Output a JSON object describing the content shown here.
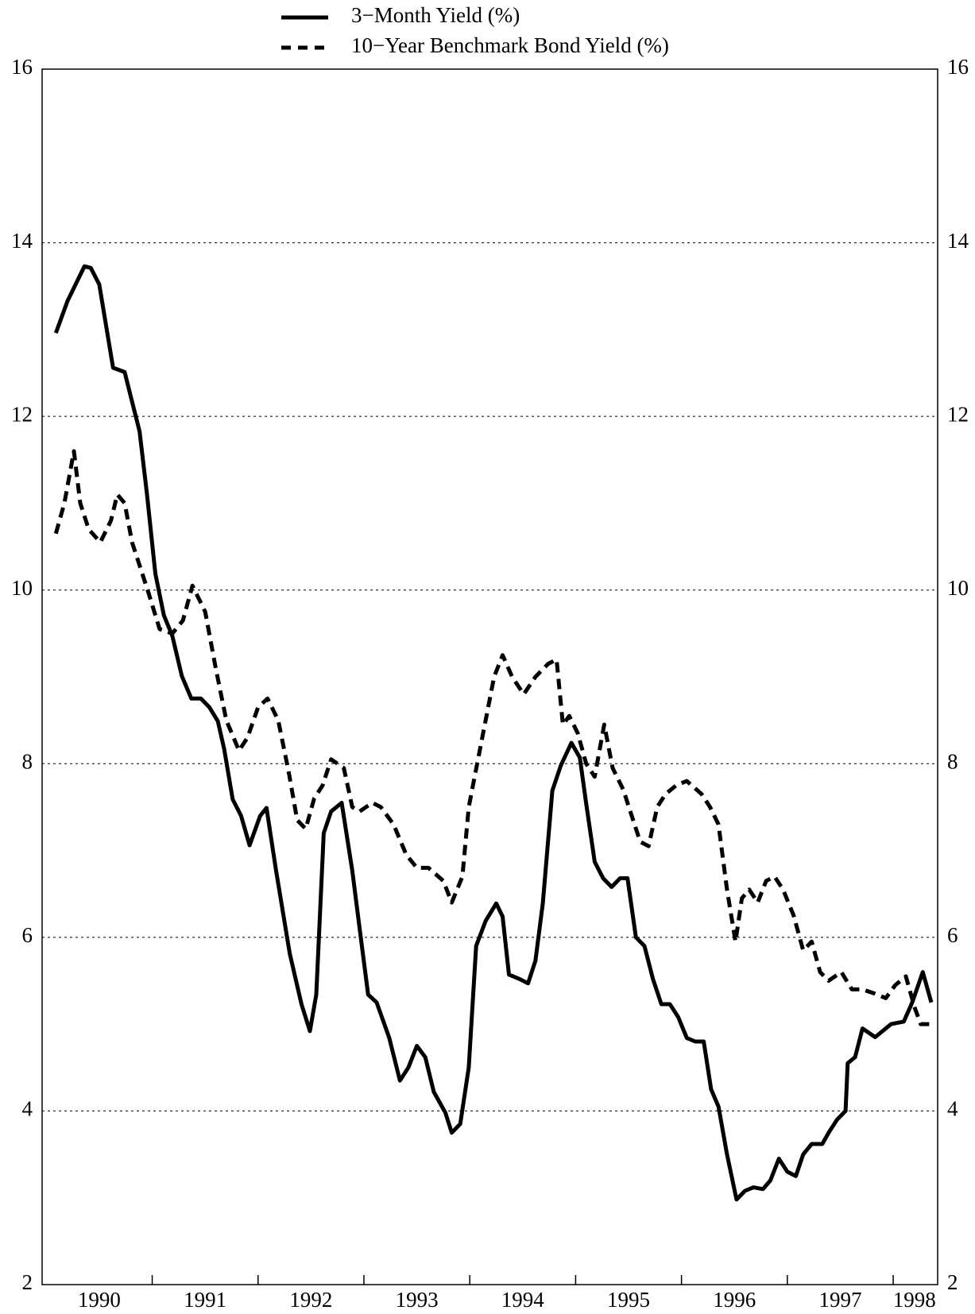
{
  "chart_data": {
    "type": "line",
    "xlim": [
      1989.96,
      1998.42
    ],
    "xticks": [
      {
        "value": 1990.5,
        "label": "1990"
      },
      {
        "value": 1991.5,
        "label": "1991"
      },
      {
        "value": 1992.5,
        "label": "1992"
      },
      {
        "value": 1993.5,
        "label": "1993"
      },
      {
        "value": 1994.5,
        "label": "1994"
      },
      {
        "value": 1995.5,
        "label": "1995"
      },
      {
        "value": 1996.5,
        "label": "1996"
      },
      {
        "value": 1997.5,
        "label": "1997"
      },
      {
        "value": 1998.2,
        "label": "1998"
      }
    ],
    "xminorticks": [
      1991,
      1992,
      1993,
      1994,
      1995,
      1996,
      1997,
      1998
    ],
    "ylim": [
      2,
      16
    ],
    "yticks": [
      2,
      4,
      6,
      8,
      10,
      12,
      14,
      16
    ],
    "grid": true,
    "legend": "top",
    "series": [
      {
        "name": "3−Month Yield (%)",
        "color": "#000000",
        "dash": "solid",
        "x": [
          1990.09,
          1990.2,
          1990.36,
          1990.42,
          1990.5,
          1990.63,
          1990.74,
          1990.81,
          1990.88,
          1990.95,
          1991.03,
          1991.11,
          1991.19,
          1991.28,
          1991.37,
          1991.46,
          1991.54,
          1991.62,
          1991.68,
          1991.76,
          1991.84,
          1991.92,
          1992.02,
          1992.08,
          1992.17,
          1992.3,
          1992.41,
          1992.49,
          1992.55,
          1992.62,
          1992.69,
          1992.79,
          1992.89,
          1992.96,
          1993.04,
          1993.12,
          1993.24,
          1993.34,
          1993.42,
          1993.5,
          1993.58,
          1993.66,
          1993.77,
          1993.83,
          1993.91,
          1993.99,
          1994.06,
          1994.15,
          1994.25,
          1994.31,
          1994.37,
          1994.47,
          1994.55,
          1994.62,
          1994.69,
          1994.78,
          1994.86,
          1994.96,
          1995.04,
          1995.1,
          1995.18,
          1995.26,
          1995.34,
          1995.42,
          1995.49,
          1995.57,
          1995.65,
          1995.73,
          1995.81,
          1995.89,
          1995.97,
          1996.05,
          1996.13,
          1996.21,
          1996.28,
          1996.35,
          1996.43,
          1996.52,
          1996.6,
          1996.68,
          1996.77,
          1996.84,
          1996.92,
          1997.0,
          1997.08,
          1997.15,
          1997.23,
          1997.33,
          1997.39,
          1997.47,
          1997.55,
          1997.57,
          1997.64,
          1997.71,
          1997.83,
          1997.98,
          1998.1,
          1998.18,
          1998.28,
          1998.36
        ],
        "values": [
          12.96,
          13.33,
          13.73,
          13.71,
          13.52,
          12.56,
          12.51,
          12.17,
          11.83,
          11.11,
          10.19,
          9.71,
          9.47,
          9.01,
          8.75,
          8.75,
          8.65,
          8.49,
          8.17,
          7.59,
          7.4,
          7.06,
          7.4,
          7.49,
          6.77,
          5.81,
          5.23,
          4.92,
          5.34,
          7.2,
          7.45,
          7.55,
          6.77,
          6.1,
          5.34,
          5.25,
          4.84,
          4.35,
          4.5,
          4.75,
          4.62,
          4.22,
          3.98,
          3.75,
          3.85,
          4.5,
          5.9,
          6.19,
          6.39,
          6.24,
          5.57,
          5.52,
          5.47,
          5.73,
          6.39,
          7.69,
          7.98,
          8.24,
          8.07,
          7.54,
          6.87,
          6.68,
          6.58,
          6.68,
          6.68,
          6.0,
          5.9,
          5.52,
          5.23,
          5.23,
          5.08,
          4.84,
          4.8,
          4.8,
          4.25,
          4.05,
          3.5,
          2.98,
          3.08,
          3.12,
          3.1,
          3.2,
          3.45,
          3.3,
          3.25,
          3.5,
          3.62,
          3.62,
          3.75,
          3.9,
          4.0,
          4.55,
          4.62,
          4.95,
          4.85,
          5.0,
          5.03,
          5.25,
          5.6,
          5.25
        ]
      },
      {
        "name": "10−Year Benchmark Bond Yield (%)",
        "color": "#000000",
        "dash": "dashed",
        "x": [
          1990.09,
          1990.17,
          1990.26,
          1990.32,
          1990.4,
          1990.51,
          1990.61,
          1990.67,
          1990.74,
          1990.81,
          1990.89,
          1990.97,
          1991.07,
          1991.19,
          1991.29,
          1991.38,
          1991.5,
          1991.6,
          1991.7,
          1991.82,
          1991.9,
          1992.0,
          1992.09,
          1992.19,
          1992.29,
          1992.37,
          1992.45,
          1992.53,
          1992.61,
          1992.69,
          1992.81,
          1992.89,
          1992.96,
          1993.08,
          1993.16,
          1993.28,
          1993.4,
          1993.5,
          1993.61,
          1993.75,
          1993.83,
          1993.93,
          1993.99,
          1994.07,
          1994.15,
          1994.23,
          1994.31,
          1994.4,
          1994.51,
          1994.62,
          1994.74,
          1994.82,
          1994.88,
          1994.94,
          1995.02,
          1995.1,
          1995.18,
          1995.27,
          1995.35,
          1995.45,
          1995.53,
          1995.61,
          1995.69,
          1995.77,
          1995.85,
          1995.95,
          1996.05,
          1996.19,
          1996.27,
          1996.35,
          1996.43,
          1996.51,
          1996.57,
          1996.64,
          1996.72,
          1996.8,
          1996.88,
          1996.96,
          1997.06,
          1997.15,
          1997.23,
          1997.31,
          1997.39,
          1997.51,
          1997.61,
          1997.71,
          1997.83,
          1997.93,
          1998.02,
          1998.12,
          1998.2,
          1998.26,
          1998.34
        ],
        "values": [
          10.65,
          11.0,
          11.6,
          11.0,
          10.7,
          10.55,
          10.8,
          11.1,
          11.0,
          10.55,
          10.25,
          9.95,
          9.55,
          9.5,
          9.65,
          10.05,
          9.75,
          9.1,
          8.5,
          8.15,
          8.3,
          8.65,
          8.75,
          8.5,
          7.9,
          7.35,
          7.25,
          7.6,
          7.75,
          8.05,
          7.95,
          7.5,
          7.45,
          7.55,
          7.5,
          7.3,
          6.95,
          6.8,
          6.8,
          6.65,
          6.4,
          6.7,
          7.5,
          8.0,
          8.5,
          9.0,
          9.25,
          9.0,
          8.8,
          9.0,
          9.15,
          9.2,
          8.45,
          8.55,
          8.35,
          8.0,
          7.85,
          8.45,
          7.95,
          7.7,
          7.4,
          7.1,
          7.05,
          7.5,
          7.65,
          7.75,
          7.8,
          7.65,
          7.5,
          7.3,
          6.55,
          5.95,
          6.45,
          6.55,
          6.4,
          6.65,
          6.7,
          6.55,
          6.25,
          5.85,
          5.95,
          5.6,
          5.5,
          5.6,
          5.4,
          5.4,
          5.35,
          5.3,
          5.45,
          5.55,
          5.2,
          5.0,
          5.0
        ]
      }
    ]
  }
}
